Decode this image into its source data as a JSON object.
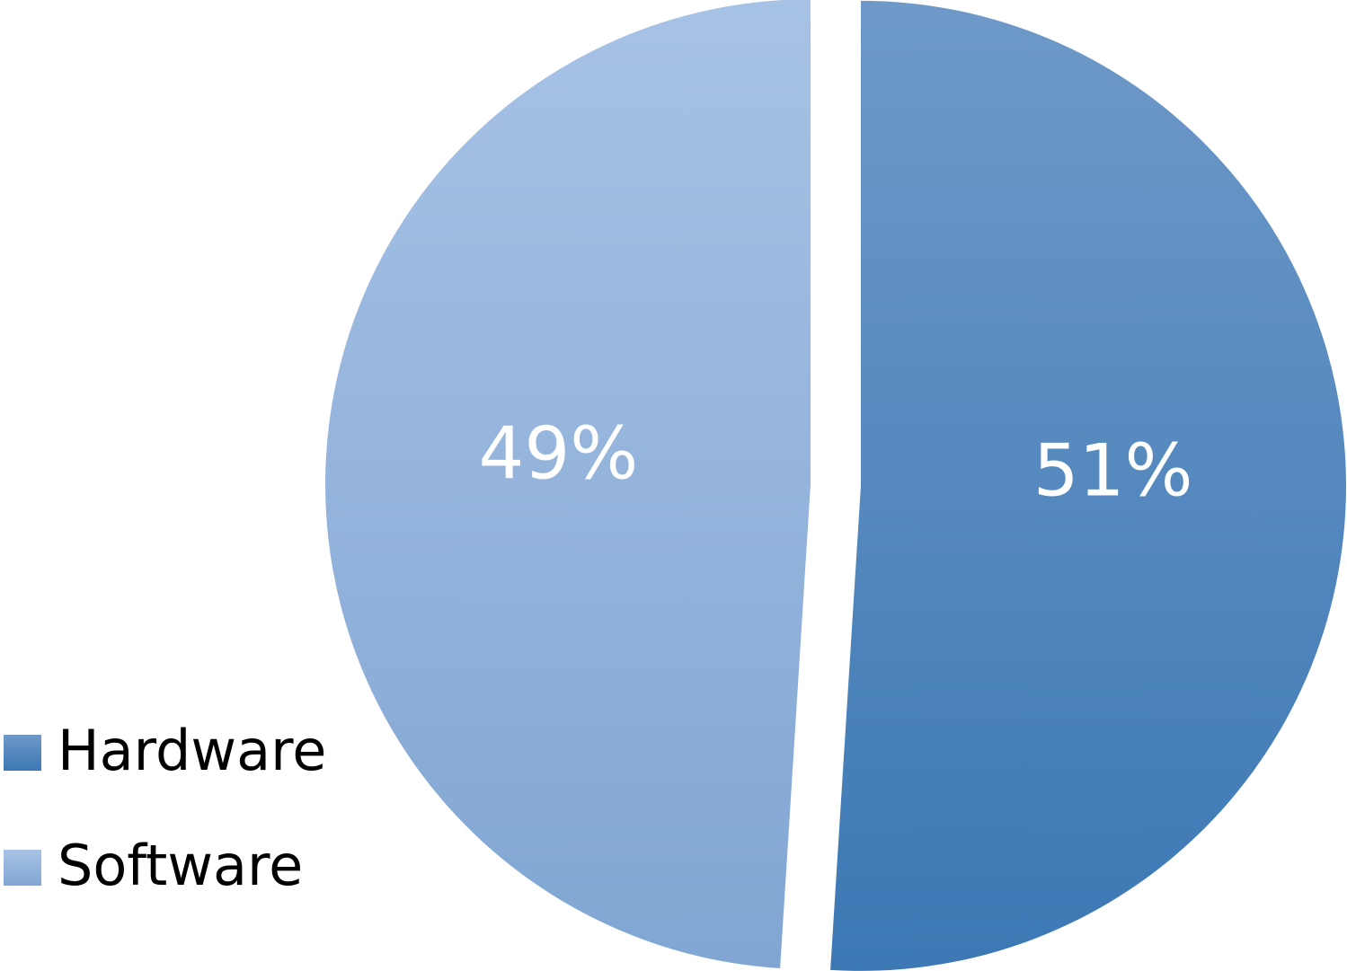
{
  "chart_data": {
    "type": "pie",
    "categories": [
      "Hardware",
      "Software"
    ],
    "values": [
      51,
      49
    ],
    "value_labels": [
      "51%",
      "49%"
    ],
    "colors": {
      "Hardware": [
        "#6e99c8",
        "#3c78b4"
      ],
      "Software": [
        "#a7c2e5",
        "#81a6d3"
      ]
    },
    "exploded": true,
    "legend": {
      "position": "left-bottom",
      "entries": [
        "Hardware",
        "Software"
      ]
    }
  }
}
